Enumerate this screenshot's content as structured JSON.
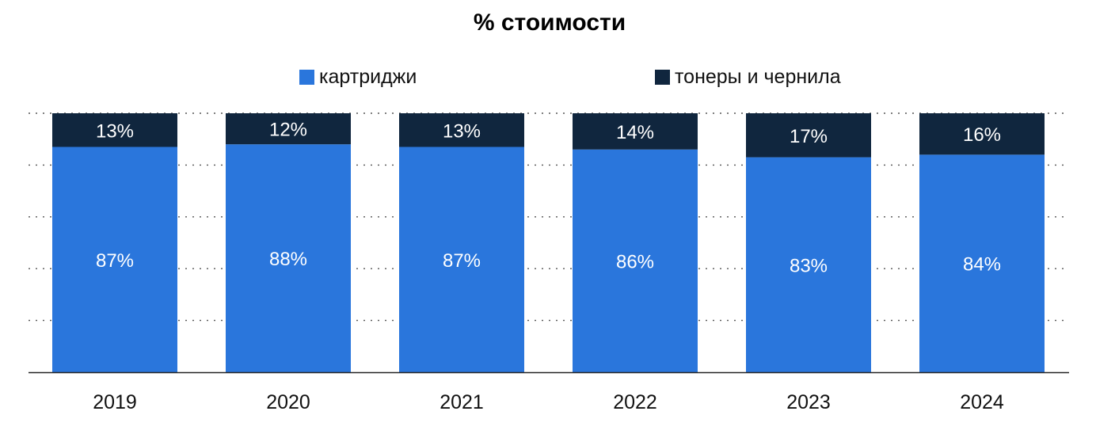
{
  "chart_data": {
    "type": "bar",
    "stacked": true,
    "title": "% стоимости",
    "categories": [
      "2019",
      "2020",
      "2021",
      "2022",
      "2023",
      "2024"
    ],
    "series": [
      {
        "name": "картриджи",
        "color": "#2a76dc",
        "values": [
          87,
          88,
          87,
          86,
          83,
          84
        ],
        "labels": [
          "87%",
          "88%",
          "87%",
          "86%",
          "83%",
          "84%"
        ]
      },
      {
        "name": "тонеры и чернила",
        "color": "#10263e",
        "values": [
          13,
          12,
          13,
          14,
          17,
          16
        ],
        "labels": [
          "13%",
          "12%",
          "13%",
          "14%",
          "17%",
          "16%"
        ]
      }
    ],
    "ylim": [
      0,
      100
    ],
    "grid": "dotted horizontal",
    "legend_position": "top"
  }
}
